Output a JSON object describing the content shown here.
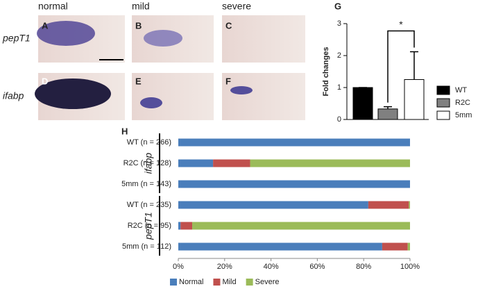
{
  "images": {
    "columns": [
      "normal",
      "mild",
      "severe"
    ],
    "rows": [
      "pepT1",
      "ifabp"
    ],
    "panels": [
      "A",
      "B",
      "C",
      "D",
      "E",
      "F"
    ]
  },
  "chart_data": [
    {
      "type": "bar",
      "panel": "G",
      "ylabel": "Fold changes",
      "categories": [
        "WT",
        "R2C",
        "5mm"
      ],
      "values": [
        1.0,
        0.33,
        1.25
      ],
      "errors": [
        0,
        0.07,
        0.87
      ],
      "colors": [
        "#000000",
        "#808080",
        "#ffffff"
      ],
      "ylim": [
        0,
        3
      ],
      "yticks": [
        0,
        1,
        2,
        3
      ],
      "annotation": "*"
    },
    {
      "type": "stacked_barh",
      "panel": "H",
      "categories": [
        "WT (n = 266)",
        "R2C (n = 128)",
        "5mm (n = 143)",
        "WT (n = 235)",
        "R2C (n = 95)",
        "5mm (n = 112)"
      ],
      "group_names": [
        "ifabp",
        "pepT1"
      ],
      "series": [
        {
          "name": "Normal",
          "color": "#4a7ebb",
          "values": [
            100,
            15,
            100,
            82,
            1,
            88
          ]
        },
        {
          "name": "Mild",
          "color": "#c0504d",
          "values": [
            0,
            16,
            0,
            17.5,
            5,
            11
          ]
        },
        {
          "name": "Severe",
          "color": "#9bbb59",
          "values": [
            0,
            69,
            0,
            0.5,
            94,
            1
          ]
        }
      ],
      "xlim": [
        0,
        100
      ],
      "xticks": [
        {
          "value": 0,
          "label": "0%"
        },
        {
          "value": 20,
          "label": "20%"
        },
        {
          "value": 40,
          "label": "40%"
        },
        {
          "value": 60,
          "label": "60%"
        },
        {
          "value": 80,
          "label": "80%"
        },
        {
          "value": 100,
          "label": "100%"
        }
      ]
    }
  ]
}
